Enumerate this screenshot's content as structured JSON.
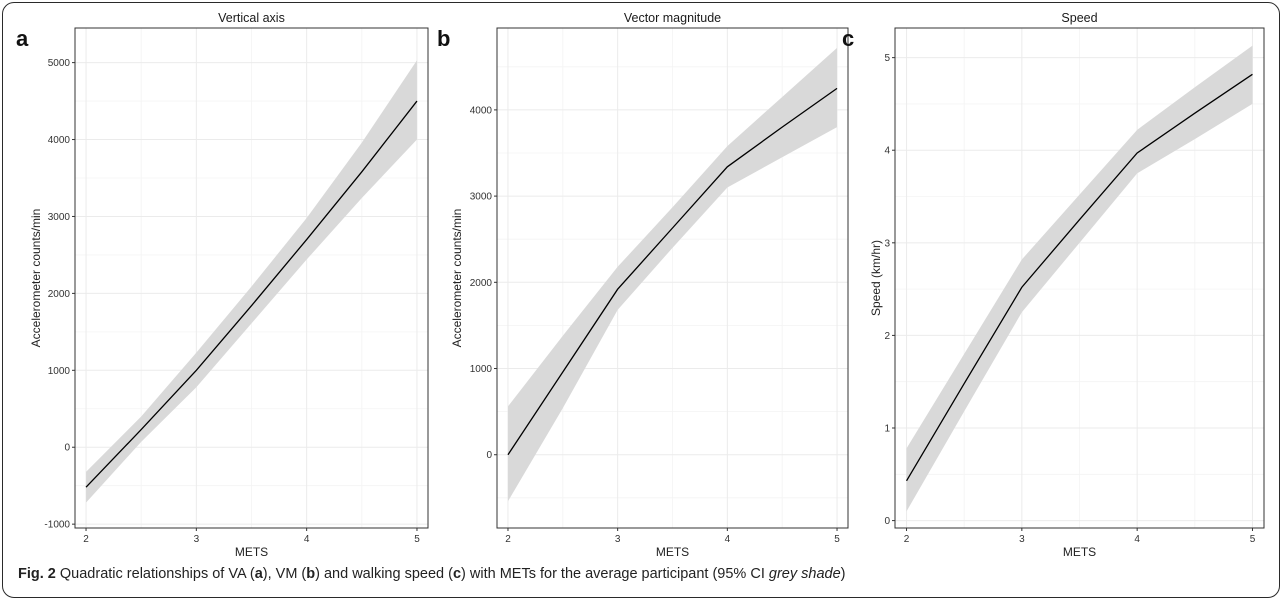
{
  "figure": {
    "caption": {
      "fig_label": "Fig. 2",
      "text_1": " Quadratic relationships of VA (",
      "a": "a",
      "text_2": "), VM (",
      "b": "b",
      "text_3": ") and walking speed (",
      "c": "c",
      "text_4": ") with METs for the average participant (95% CI ",
      "italic": "grey shade",
      "text_5": ")"
    }
  },
  "colors": {
    "line": "#000000",
    "ci_band": "#d9d9d9",
    "grid": "#ebebeb",
    "panel_border": "#333333"
  },
  "chart_data": [
    {
      "type": "line",
      "panel_letter": "a",
      "title": "Vertical axis",
      "xlabel": "METS",
      "ylabel": "Accelerometer counts/min",
      "xlim": [
        1.9,
        5.1
      ],
      "ylim": [
        -1050,
        5450
      ],
      "x_ticks": [
        2,
        3,
        4,
        5
      ],
      "y_ticks": [
        -1000,
        0,
        1000,
        2000,
        3000,
        4000,
        5000
      ],
      "grid": true,
      "series": [
        {
          "x": [
            2,
            2.5,
            3,
            3.5,
            4,
            4.5,
            5
          ],
          "y": [
            -520,
            230,
            1000,
            1840,
            2700,
            3580,
            4500
          ],
          "ci_lower": [
            -720,
            70,
            780,
            1610,
            2440,
            3240,
            4000
          ],
          "ci_upper": [
            -320,
            400,
            1230,
            2090,
            2980,
            3960,
            5030
          ]
        }
      ]
    },
    {
      "type": "line",
      "panel_letter": "b",
      "title": "Vector magnitude",
      "xlabel": "METS",
      "ylabel": "Accelerometer counts/min",
      "xlim": [
        1.9,
        5.1
      ],
      "ylim": [
        -850,
        4950
      ],
      "x_ticks": [
        2,
        3,
        4,
        5
      ],
      "y_ticks": [
        0,
        1000,
        2000,
        3000,
        4000
      ],
      "grid": true,
      "series": [
        {
          "x": [
            2,
            2.5,
            3,
            3.5,
            4,
            4.5,
            5
          ],
          "y": [
            0,
            960,
            1920,
            2630,
            3340,
            3800,
            4250
          ],
          "ci_lower": [
            -540,
            540,
            1680,
            2400,
            3100,
            3450,
            3800
          ],
          "ci_upper": [
            560,
            1380,
            2180,
            2870,
            3580,
            4150,
            4720
          ]
        }
      ]
    },
    {
      "type": "line",
      "panel_letter": "c",
      "title": "Speed",
      "xlabel": "METS",
      "ylabel": "Speed (km/hr)",
      "xlim": [
        1.9,
        5.1
      ],
      "ylim": [
        -0.08,
        5.32
      ],
      "x_ticks": [
        2,
        3,
        4,
        5
      ],
      "y_ticks": [
        0,
        1,
        2,
        3,
        4,
        5
      ],
      "grid": true,
      "series": [
        {
          "x": [
            2,
            2.5,
            3,
            3.5,
            4,
            4.5,
            5
          ],
          "y": [
            0.43,
            1.48,
            2.52,
            3.25,
            3.97,
            4.4,
            4.82
          ],
          "ci_lower": [
            0.1,
            1.18,
            2.25,
            3.0,
            3.75,
            4.12,
            4.5
          ],
          "ci_upper": [
            0.78,
            1.8,
            2.82,
            3.52,
            4.22,
            4.68,
            5.13
          ]
        }
      ]
    }
  ]
}
